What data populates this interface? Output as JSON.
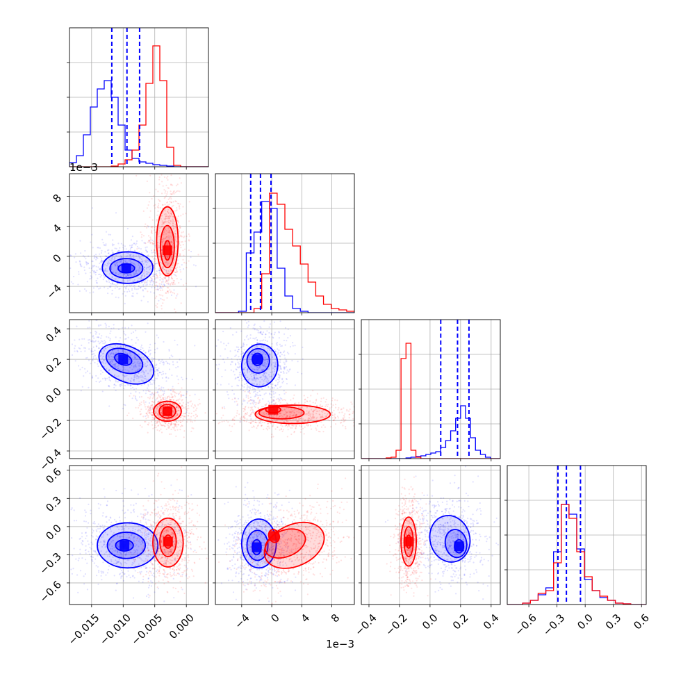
{
  "chart_data": {
    "type": "corner",
    "n_params": 4,
    "colors": {
      "series_a": "#0000ff",
      "series_b": "#ff0000",
      "grid": "#b0b0b0"
    },
    "grid": true,
    "series": [
      {
        "color": "#0000ff",
        "quantile_lines": true
      },
      {
        "color": "#ff0000",
        "quantile_lines": false
      }
    ],
    "params": [
      {
        "range": [
          -0.0185,
          0.0035
        ],
        "ticks": [
          -0.015,
          -0.01,
          -0.005,
          0.0
        ],
        "tick_labels": [
          "−0.015",
          "−0.010",
          "−0.005",
          "0.000"
        ],
        "offset_text": "",
        "hist_blue": [
          0.03,
          0.08,
          0.23,
          0.43,
          0.56,
          0.62,
          0.5,
          0.3,
          0.12,
          0.06,
          0.035,
          0.025,
          0.015,
          0.01,
          0.005,
          0,
          0,
          0,
          0,
          0
        ],
        "hist_red": [
          0,
          0,
          0,
          0,
          0,
          0,
          0.005,
          0.02,
          0.05,
          0.12,
          0.3,
          0.6,
          0.87,
          0.62,
          0.14,
          0.01,
          0,
          0,
          0,
          0
        ],
        "quantiles_blue": [
          -0.0118,
          -0.0094,
          -0.0074
        ],
        "centers": {
          "blue": -0.0095,
          "red": -0.003
        }
      },
      {
        "range": [
          -7.5,
          11.0
        ],
        "ticks": [
          -4,
          0,
          4,
          8
        ],
        "tick_labels": [
          "−4",
          "0",
          "4",
          "8"
        ],
        "offset_text": "1e−3",
        "hist_blue": [
          0,
          0,
          0,
          0.01,
          0.43,
          0.58,
          0.8,
          0.75,
          0.32,
          0.12,
          0.03,
          0.01,
          0,
          0,
          0,
          0,
          0,
          0
        ],
        "hist_red": [
          0,
          0,
          0,
          0,
          0,
          0.03,
          0.28,
          0.86,
          0.78,
          0.6,
          0.48,
          0.35,
          0.22,
          0.12,
          0.06,
          0.03,
          0.02,
          0.01
        ],
        "quantiles_blue": [
          -2.8,
          -1.5,
          -0.1
        ],
        "centers": {
          "blue": -1.6,
          "red": 0.5
        }
      },
      {
        "range": [
          -0.45,
          0.46
        ],
        "ticks": [
          -0.4,
          -0.2,
          0.0,
          0.2,
          0.4
        ],
        "tick_labels": [
          "−0.4",
          "−0.2",
          "0.0",
          "0.2",
          "0.4"
        ],
        "offset_text": "",
        "hist_blue": [
          0,
          0,
          0,
          0,
          0,
          0,
          0,
          0,
          0,
          0.005,
          0.01,
          0.015,
          0.02,
          0.03,
          0.04,
          0.05,
          0.08,
          0.13,
          0.2,
          0.29,
          0.38,
          0.29,
          0.15,
          0.06,
          0.03,
          0.01,
          0,
          0
        ],
        "hist_red": [
          0,
          0,
          0,
          0,
          0,
          0.005,
          0.01,
          0.06,
          0.72,
          0.83,
          0.06,
          0.01,
          0,
          0,
          0,
          0,
          0,
          0,
          0,
          0,
          0,
          0,
          0,
          0,
          0,
          0,
          0,
          0
        ],
        "quantiles_blue": [
          0.07,
          0.18,
          0.255
        ],
        "centers": {
          "blue": 0.19,
          "red": -0.14
        }
      },
      {
        "range": [
          -0.83,
          0.65
        ],
        "ticks": [
          -0.6,
          -0.3,
          0.0,
          0.3,
          0.6
        ],
        "tick_labels": [
          "−0.6",
          "−0.3",
          "0.0",
          "0.3",
          "0.6"
        ],
        "offset_text": "",
        "hist_blue": [
          0,
          0,
          0.01,
          0.03,
          0.07,
          0.12,
          0.38,
          0.72,
          0.65,
          0.4,
          0.18,
          0.1,
          0.05,
          0.03,
          0.01,
          0.005,
          0,
          0
        ],
        "hist_red": [
          0,
          0,
          0.01,
          0.03,
          0.08,
          0.1,
          0.3,
          0.72,
          0.62,
          0.38,
          0.2,
          0.1,
          0.06,
          0.03,
          0.01,
          0.005,
          0,
          0
        ],
        "quantiles_blue": [
          -0.29,
          -0.2,
          -0.05
        ],
        "centers": {
          "blue": -0.2,
          "red": -0.15
        }
      }
    ],
    "pairs": [
      {
        "x": 0,
        "y": 1,
        "blue_contours": [
          {
            "cx": -0.0095,
            "cy": -1.6,
            "rx": 0.0013,
            "ry": 0.6,
            "rot": 0
          },
          {
            "cx": -0.0095,
            "cy": -1.6,
            "rx": 0.0026,
            "ry": 1.3,
            "rot": 0
          },
          {
            "cx": -0.0093,
            "cy": -1.5,
            "rx": 0.004,
            "ry": 2.1,
            "rot": 0
          }
        ],
        "red_contours": [
          {
            "cx": -0.003,
            "cy": 0.8,
            "rx": 0.0005,
            "ry": 1.3,
            "rot": 0
          },
          {
            "cx": -0.003,
            "cy": 1.3,
            "rx": 0.0011,
            "ry": 2.8,
            "rot": 0
          },
          {
            "cx": -0.003,
            "cy": 2.0,
            "rx": 0.0017,
            "ry": 4.6,
            "rot": 0
          }
        ]
      },
      {
        "x": 0,
        "y": 2,
        "blue_contours": [
          {
            "cx": -0.01,
            "cy": 0.2,
            "rx": 0.0014,
            "ry": 0.035,
            "rot": 20
          },
          {
            "cx": -0.0098,
            "cy": 0.19,
            "rx": 0.003,
            "ry": 0.075,
            "rot": 20
          },
          {
            "cx": -0.0095,
            "cy": 0.17,
            "rx": 0.0046,
            "ry": 0.115,
            "rot": 25
          }
        ],
        "red_contours": [
          {
            "cx": -0.003,
            "cy": -0.14,
            "rx": 0.0007,
            "ry": 0.025,
            "rot": 0
          },
          {
            "cx": -0.003,
            "cy": -0.14,
            "rx": 0.0013,
            "ry": 0.045,
            "rot": 0
          },
          {
            "cx": -0.003,
            "cy": -0.14,
            "rx": 0.0022,
            "ry": 0.065,
            "rot": 0
          }
        ]
      },
      {
        "x": 1,
        "y": 2,
        "blue_contours": [
          {
            "cx": -1.9,
            "cy": 0.2,
            "rx": 0.7,
            "ry": 0.04,
            "rot": 0
          },
          {
            "cx": -1.8,
            "cy": 0.19,
            "rx": 1.5,
            "ry": 0.08,
            "rot": 0
          },
          {
            "cx": -1.6,
            "cy": 0.16,
            "rx": 2.4,
            "ry": 0.14,
            "rot": 5
          }
        ],
        "red_contours": [
          {
            "cx": 0.2,
            "cy": -0.13,
            "rx": 1.0,
            "ry": 0.02,
            "rot": 0
          },
          {
            "cx": 1.3,
            "cy": -0.15,
            "rx": 3.0,
            "ry": 0.04,
            "rot": 0
          },
          {
            "cx": 2.8,
            "cy": -0.16,
            "rx": 5.0,
            "ry": 0.06,
            "rot": 0
          }
        ]
      },
      {
        "x": 0,
        "y": 3,
        "blue_contours": [
          {
            "cx": -0.0098,
            "cy": -0.2,
            "rx": 0.0014,
            "ry": 0.06,
            "rot": 0
          },
          {
            "cx": -0.0095,
            "cy": -0.2,
            "rx": 0.003,
            "ry": 0.14,
            "rot": 0
          },
          {
            "cx": -0.0093,
            "cy": -0.2,
            "rx": 0.0048,
            "ry": 0.24,
            "rot": 0
          }
        ],
        "red_contours": [
          {
            "cx": -0.0029,
            "cy": -0.16,
            "rx": 0.0006,
            "ry": 0.07,
            "rot": 0
          },
          {
            "cx": -0.0029,
            "cy": -0.16,
            "rx": 0.0013,
            "ry": 0.16,
            "rot": 0
          },
          {
            "cx": -0.0029,
            "cy": -0.17,
            "rx": 0.0024,
            "ry": 0.26,
            "rot": 0
          }
        ]
      },
      {
        "x": 1,
        "y": 3,
        "blue_contours": [
          {
            "cx": -2.0,
            "cy": -0.22,
            "rx": 0.6,
            "ry": 0.08,
            "rot": 0
          },
          {
            "cx": -1.9,
            "cy": -0.2,
            "rx": 1.4,
            "ry": 0.16,
            "rot": 0
          },
          {
            "cx": -1.7,
            "cy": -0.18,
            "rx": 2.3,
            "ry": 0.26,
            "rot": 0
          }
        ],
        "red_contours": [
          {
            "cx": 0.3,
            "cy": -0.1,
            "rx": 0.7,
            "ry": 0.07,
            "rot": -20
          },
          {
            "cx": 1.8,
            "cy": -0.18,
            "rx": 2.8,
            "ry": 0.14,
            "rot": -22
          },
          {
            "cx": 3.0,
            "cy": -0.2,
            "rx": 4.2,
            "ry": 0.22,
            "rot": -25
          }
        ]
      },
      {
        "x": 2,
        "y": 3,
        "blue_contours": [
          {
            "cx": 0.19,
            "cy": -0.21,
            "rx": 0.03,
            "ry": 0.07,
            "rot": 0
          },
          {
            "cx": 0.17,
            "cy": -0.18,
            "rx": 0.07,
            "ry": 0.15,
            "rot": -10
          },
          {
            "cx": 0.13,
            "cy": -0.13,
            "rx": 0.13,
            "ry": 0.25,
            "rot": -15
          }
        ],
        "red_contours": [
          {
            "cx": -0.14,
            "cy": -0.16,
            "rx": 0.015,
            "ry": 0.07,
            "rot": 0
          },
          {
            "cx": -0.14,
            "cy": -0.16,
            "rx": 0.03,
            "ry": 0.16,
            "rot": 0
          },
          {
            "cx": -0.14,
            "cy": -0.16,
            "rx": 0.05,
            "ry": 0.26,
            "rot": 0
          }
        ]
      }
    ]
  }
}
